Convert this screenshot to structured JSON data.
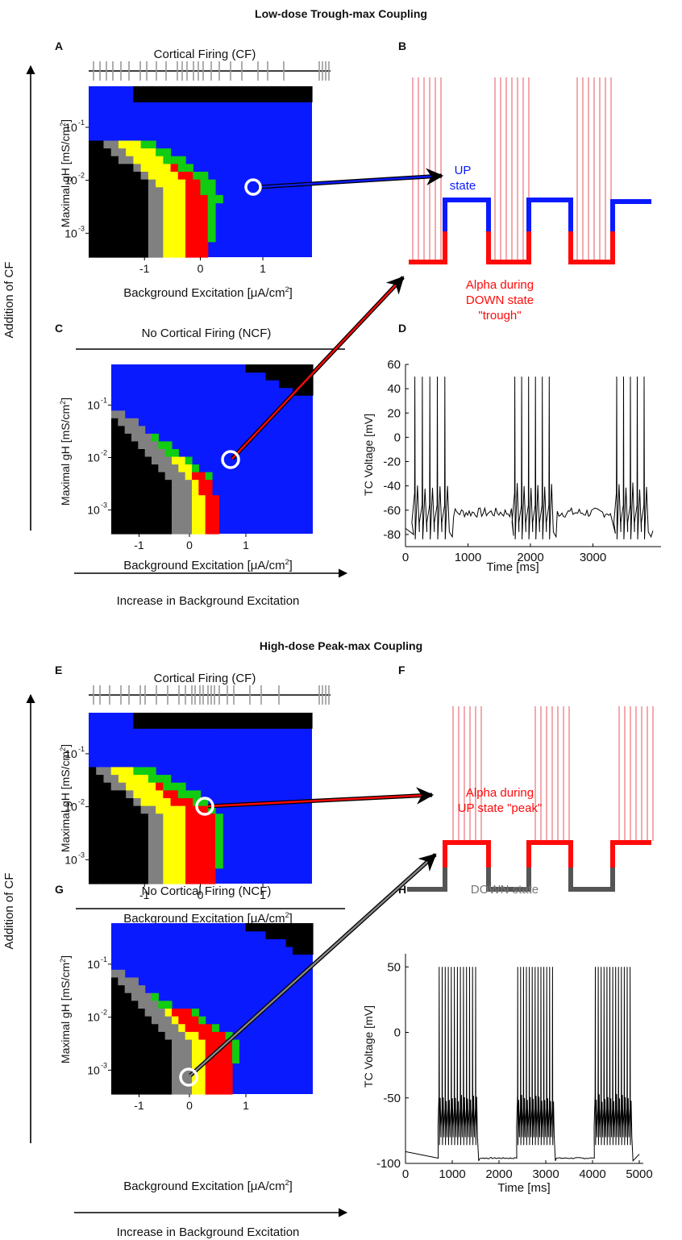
{
  "top": {
    "title": "Low-dose Trough-max Coupling",
    "panel_a": {
      "label": "A",
      "raster_title": "Cortical Firing (CF)",
      "y_label": "Maximal gH [mS/cm",
      "y_label_end": "]",
      "x_label": "Background Excitation [μA/cm",
      "x_label_end": "]",
      "y_ticks": [
        "10",
        "10",
        "10"
      ],
      "y_tick_exps": [
        "-1",
        "-2",
        "-3"
      ],
      "x_ticks": [
        "-1",
        "0",
        "1"
      ]
    },
    "panel_b": {
      "label": "B",
      "up_label_1": "UP",
      "up_label_2": "state",
      "alpha_1": "Alpha during",
      "alpha_2": "DOWN state",
      "alpha_3": "\"trough\""
    },
    "panel_c": {
      "label": "C",
      "raster_title": "No Cortical Firing (NCF)",
      "y_label": "Maximal gH [mS/cm",
      "y_label_end": "]",
      "x_label": "Background Excitation [μA/cm",
      "x_label_end": "]",
      "y_ticks": [
        "10",
        "10",
        "10"
      ],
      "y_tick_exps": [
        "-1",
        "-2",
        "-3"
      ],
      "x_ticks": [
        "-1",
        "0",
        "1"
      ]
    },
    "panel_d": {
      "label": "D",
      "y_label": "TC Voltage [mV]",
      "x_label": "Time [ms]",
      "y_ticks": [
        "60",
        "40",
        "20",
        "0",
        "-20",
        "-40",
        "-60",
        "-80"
      ],
      "x_ticks": [
        "0",
        "1000",
        "2000",
        "3000"
      ]
    },
    "side_label": "Addition of CF",
    "bottom_label": "Increase in Background Excitation"
  },
  "bottom": {
    "title": "High-dose Peak-max Coupling",
    "panel_e": {
      "label": "E",
      "raster_title": "Cortical Firing (CF)",
      "y_label": "Maximal gH [mS/cm",
      "y_label_end": "]",
      "x_label": "Background Excitation [μA/cm",
      "x_label_end": "]",
      "y_ticks": [
        "10",
        "10",
        "10"
      ],
      "y_tick_exps": [
        "-1",
        "-2",
        "-3"
      ],
      "x_ticks": [
        "-1",
        "0",
        "1"
      ]
    },
    "panel_f": {
      "label": "F",
      "alpha_1": "Alpha during",
      "alpha_2": "UP state \"peak\"",
      "down_label": "DOWN state"
    },
    "panel_g": {
      "label": "G",
      "raster_title": "No Cortical Firing (NCF)",
      "y_label": "Maximal gH [mS/cm",
      "y_label_end": "]",
      "x_label": "Background Excitation [μA/cm",
      "x_label_end": "]",
      "y_ticks": [
        "10",
        "10",
        "10"
      ],
      "y_tick_exps": [
        "-1",
        "-2",
        "-3"
      ],
      "x_ticks": [
        "-1",
        "0",
        "1"
      ]
    },
    "panel_h": {
      "label": "H",
      "y_label": "TC Voltage [mV]",
      "x_label": "Time [ms]",
      "y_ticks": [
        "50",
        "0",
        "-50",
        "-100"
      ],
      "x_ticks": [
        "0",
        "1000",
        "2000",
        "3000",
        "4000",
        "5000"
      ]
    },
    "side_label": "Addition of CF",
    "bottom_label": "Increase in Background Excitation"
  },
  "colors": {
    "up": "#0a1aff",
    "alpha": "#ff0a0a",
    "down_gray": "#555555",
    "map_blue": "#0a1aff",
    "map_black": "#000000",
    "map_gray": "#808080",
    "map_yellow": "#ffff00",
    "map_red": "#ff0000",
    "map_green": "#11cc11",
    "spike_pink": "#f2a0a6"
  }
}
